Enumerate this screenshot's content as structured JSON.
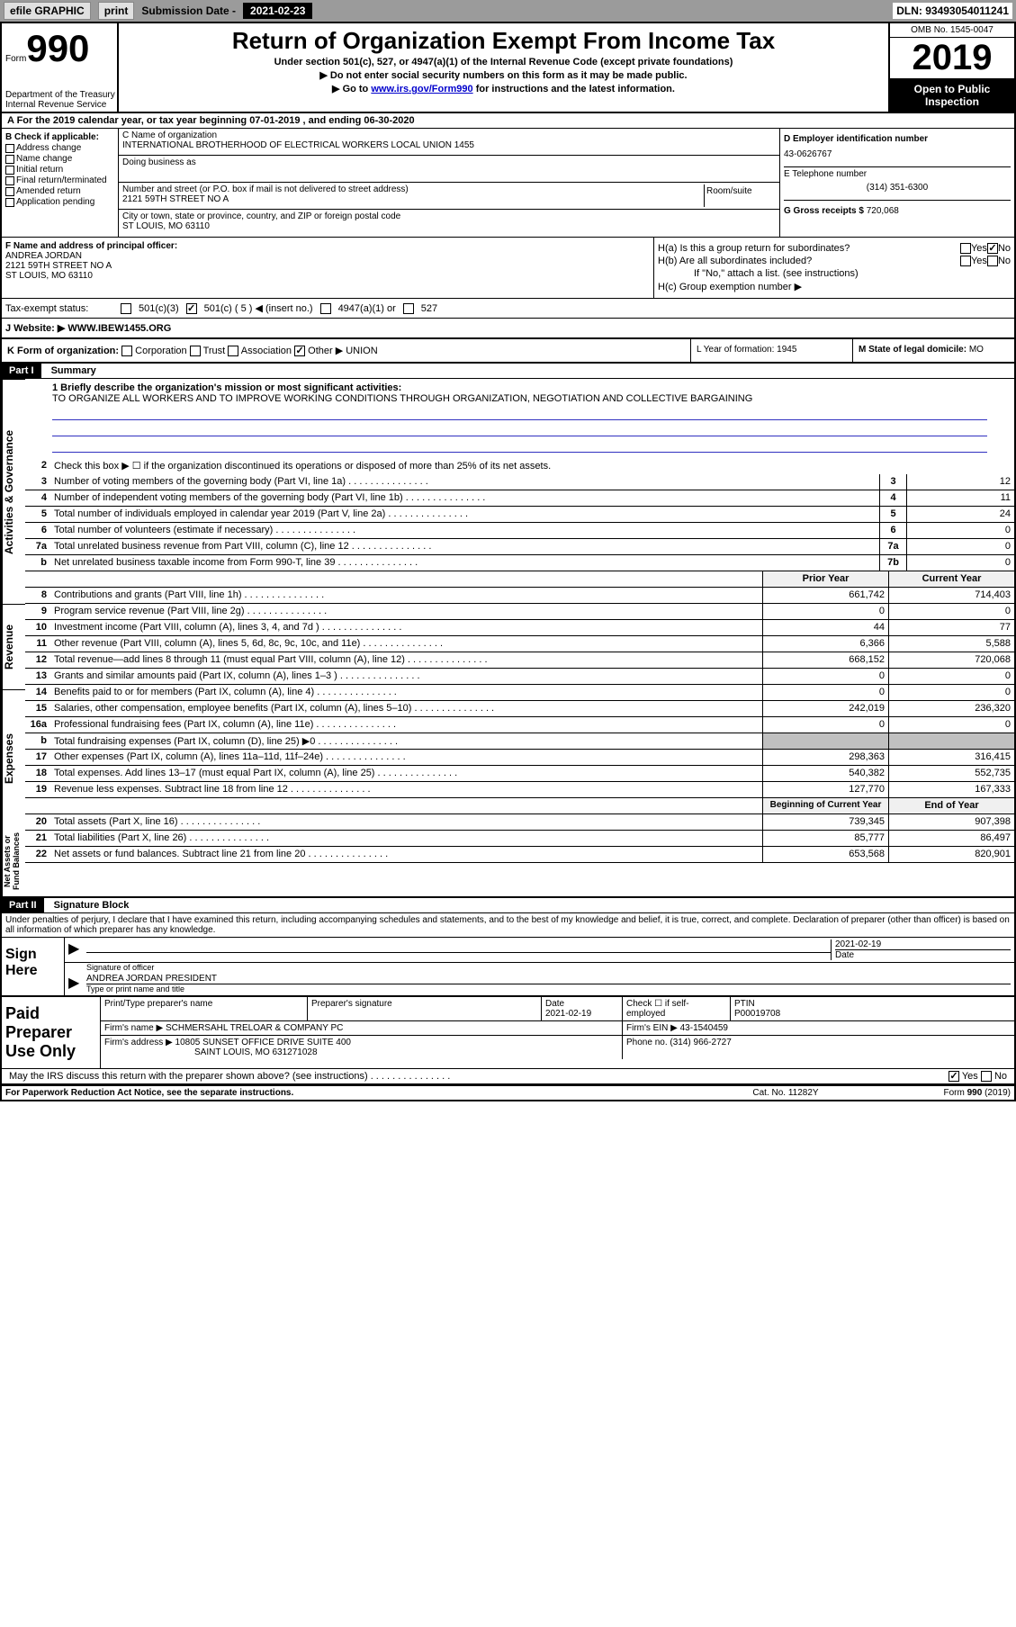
{
  "topbar": {
    "efile": "efile GRAPHIC",
    "print": "print",
    "sub_label": "Submission Date -",
    "sub_date": "2021-02-23",
    "dln": "DLN: 93493054011241"
  },
  "header": {
    "form_word": "Form",
    "form_num": "990",
    "dept": "Department of the Treasury\nInternal Revenue Service",
    "title": "Return of Organization Exempt From Income Tax",
    "subtitle": "Under section 501(c), 527, or 4947(a)(1) of the Internal Revenue Code (except private foundations)",
    "note1": "▶ Do not enter social security numbers on this form as it may be made public.",
    "note2_a": "▶ Go to ",
    "note2_link": "www.irs.gov/Form990",
    "note2_b": " for instructions and the latest information.",
    "omb": "OMB No. 1545-0047",
    "year": "2019",
    "inspect": "Open to Public\nInspection"
  },
  "rowA": "A For the 2019 calendar year, or tax year beginning 07-01-2019    , and ending 06-30-2020",
  "boxB": {
    "title": "B Check if applicable:",
    "items": [
      "Address change",
      "Name change",
      "Initial return",
      "Final return/terminated",
      "Amended return",
      "Application pending"
    ]
  },
  "boxC": {
    "name_label": "C Name of organization",
    "name": "INTERNATIONAL BROTHERHOOD OF ELECTRICAL WORKERS LOCAL UNION 1455",
    "dba_label": "Doing business as",
    "addr_label": "Number and street (or P.O. box if mail is not delivered to street address)",
    "room_label": "Room/suite",
    "addr": "2121 59TH STREET NO A",
    "city_label": "City or town, state or province, country, and ZIP or foreign postal code",
    "city": "ST LOUIS, MO  63110"
  },
  "boxD": {
    "ein_label": "D Employer identification number",
    "ein": "43-0626767",
    "phone_label": "E Telephone number",
    "phone": "(314) 351-6300",
    "gross_label": "G Gross receipts $",
    "gross": "720,068"
  },
  "boxF": {
    "label": "F  Name and address of principal officer:",
    "name": "ANDREA JORDAN",
    "addr1": "2121 59TH STREET NO A",
    "addr2": "ST LOUIS, MO  63110"
  },
  "boxH": {
    "ha": "H(a)  Is this a group return for subordinates?",
    "hb": "H(b)  Are all subordinates included?",
    "hb_note": "If \"No,\" attach a list. (see instructions)",
    "hc": "H(c)  Group exemption number ▶",
    "yes": "Yes",
    "no": "No"
  },
  "rowI": {
    "label": "Tax-exempt status:",
    "opt1": "501(c)(3)",
    "opt2": "501(c) ( 5 ) ◀ (insert no.)",
    "opt3": "4947(a)(1) or",
    "opt4": "527"
  },
  "rowJ": {
    "label": "J  Website: ▶",
    "url": "WWW.IBEW1455.ORG"
  },
  "rowK": {
    "label": "K Form of organization:",
    "opts": [
      "Corporation",
      "Trust",
      "Association",
      "Other ▶"
    ],
    "other": "UNION",
    "L": "L Year of formation: 1945",
    "M_label": "M State of legal domicile:",
    "M_val": "MO"
  },
  "partI": {
    "part": "Part I",
    "title": "Summary",
    "q1": "1  Briefly describe the organization's mission or most significant activities:",
    "mission": "TO ORGANIZE ALL WORKERS AND TO IMPROVE WORKING CONDITIONS THROUGH ORGANIZATION, NEGOTIATION AND COLLECTIVE BARGAINING",
    "q2": "Check this box ▶ ☐  if the organization discontinued its operations or disposed of more than 25% of its net assets.",
    "lines_top": [
      {
        "n": "3",
        "d": "Number of voting members of the governing body (Part VI, line 1a)",
        "b": "3",
        "v": "12"
      },
      {
        "n": "4",
        "d": "Number of independent voting members of the governing body (Part VI, line 1b)",
        "b": "4",
        "v": "11"
      },
      {
        "n": "5",
        "d": "Total number of individuals employed in calendar year 2019 (Part V, line 2a)",
        "b": "5",
        "v": "24"
      },
      {
        "n": "6",
        "d": "Total number of volunteers (estimate if necessary)",
        "b": "6",
        "v": "0"
      },
      {
        "n": "7a",
        "d": "Total unrelated business revenue from Part VIII, column (C), line 12",
        "b": "7a",
        "v": "0"
      },
      {
        "n": "b",
        "d": "Net unrelated business taxable income from Form 990-T, line 39",
        "b": "7b",
        "v": "0"
      }
    ],
    "prior_hdr": "Prior Year",
    "curr_hdr": "Current Year",
    "revenue": [
      {
        "n": "8",
        "d": "Contributions and grants (Part VIII, line 1h)",
        "p": "661,742",
        "c": "714,403"
      },
      {
        "n": "9",
        "d": "Program service revenue (Part VIII, line 2g)",
        "p": "0",
        "c": "0"
      },
      {
        "n": "10",
        "d": "Investment income (Part VIII, column (A), lines 3, 4, and 7d )",
        "p": "44",
        "c": "77"
      },
      {
        "n": "11",
        "d": "Other revenue (Part VIII, column (A), lines 5, 6d, 8c, 9c, 10c, and 11e)",
        "p": "6,366",
        "c": "5,588"
      },
      {
        "n": "12",
        "d": "Total revenue—add lines 8 through 11 (must equal Part VIII, column (A), line 12)",
        "p": "668,152",
        "c": "720,068"
      }
    ],
    "expenses": [
      {
        "n": "13",
        "d": "Grants and similar amounts paid (Part IX, column (A), lines 1–3 )",
        "p": "0",
        "c": "0"
      },
      {
        "n": "14",
        "d": "Benefits paid to or for members (Part IX, column (A), line 4)",
        "p": "0",
        "c": "0"
      },
      {
        "n": "15",
        "d": "Salaries, other compensation, employee benefits (Part IX, column (A), lines 5–10)",
        "p": "242,019",
        "c": "236,320"
      },
      {
        "n": "16a",
        "d": "Professional fundraising fees (Part IX, column (A), line 11e)",
        "p": "0",
        "c": "0"
      },
      {
        "n": "b",
        "d": "Total fundraising expenses (Part IX, column (D), line 25) ▶0",
        "p": "",
        "c": "",
        "shade": true
      },
      {
        "n": "17",
        "d": "Other expenses (Part IX, column (A), lines 11a–11d, 11f–24e)",
        "p": "298,363",
        "c": "316,415"
      },
      {
        "n": "18",
        "d": "Total expenses. Add lines 13–17 (must equal Part IX, column (A), line 25)",
        "p": "540,382",
        "c": "552,735"
      },
      {
        "n": "19",
        "d": "Revenue less expenses. Subtract line 18 from line 12",
        "p": "127,770",
        "c": "167,333"
      }
    ],
    "net_hdr_p": "Beginning of Current Year",
    "net_hdr_c": "End of Year",
    "net": [
      {
        "n": "20",
        "d": "Total assets (Part X, line 16)",
        "p": "739,345",
        "c": "907,398"
      },
      {
        "n": "21",
        "d": "Total liabilities (Part X, line 26)",
        "p": "85,777",
        "c": "86,497"
      },
      {
        "n": "22",
        "d": "Net assets or fund balances. Subtract line 21 from line 20",
        "p": "653,568",
        "c": "820,901"
      }
    ],
    "side_ag": "Activities & Governance",
    "side_rev": "Revenue",
    "side_exp": "Expenses",
    "side_net": "Net Assets or\nFund Balances"
  },
  "partII": {
    "part": "Part II",
    "title": "Signature Block",
    "decl": "Under penalties of perjury, I declare that I have examined this return, including accompanying schedules and statements, and to the best of my knowledge and belief, it is true, correct, and complete. Declaration of preparer (other than officer) is based on all information of which preparer has any knowledge.",
    "sign_here": "Sign Here",
    "sig_officer": "Signature of officer",
    "date_label": "Date",
    "date": "2021-02-19",
    "name_title": "ANDREA JORDAN  PRESIDENT",
    "name_title_label": "Type or print name and title",
    "paid": "Paid Preparer Use Only",
    "prep_name_label": "Print/Type preparer's name",
    "prep_sig_label": "Preparer's signature",
    "prep_date": "2021-02-19",
    "check_self": "Check ☐ if self-employed",
    "ptin_label": "PTIN",
    "ptin": "P00019708",
    "firm_name_label": "Firm's name    ▶",
    "firm_name": "SCHMERSAHL TRELOAR & COMPANY PC",
    "firm_ein_label": "Firm's EIN ▶",
    "firm_ein": "43-1540459",
    "firm_addr_label": "Firm's address ▶",
    "firm_addr": "10805 SUNSET OFFICE DRIVE SUITE 400",
    "firm_city": "SAINT LOUIS, MO  631271028",
    "firm_phone_label": "Phone no.",
    "firm_phone": "(314) 966-2727",
    "discuss": "May the IRS discuss this return with the preparer shown above? (see instructions)"
  },
  "footer": {
    "left": "For Paperwork Reduction Act Notice, see the separate instructions.",
    "mid": "Cat. No. 11282Y",
    "right": "Form 990 (2019)"
  }
}
